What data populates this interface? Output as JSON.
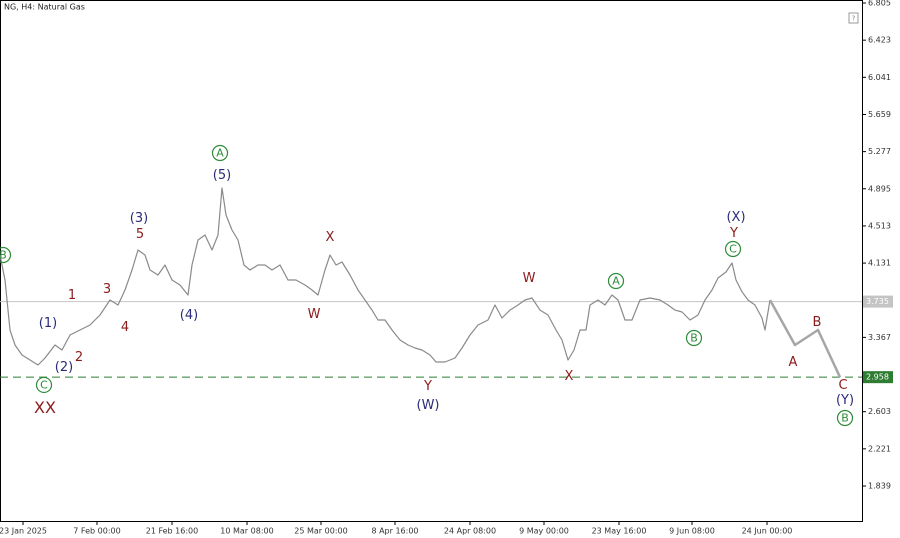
{
  "chart_data": {
    "type": "line",
    "title": "NG, H4: Natural Gas",
    "xlim": [
      0,
      172.4
    ],
    "ylim": [
      1.479,
      6.836
    ],
    "yticks": [
      6.805,
      6.423,
      6.041,
      5.659,
      5.277,
      4.895,
      4.513,
      4.131,
      3.367,
      2.603,
      2.221,
      1.839
    ],
    "xticks": [
      {
        "value": 4.6,
        "label": "23 Jan 2025"
      },
      {
        "value": 19.4,
        "label": "7 Feb 00:00"
      },
      {
        "value": 34.4,
        "label": "21 Feb 16:00"
      },
      {
        "value": 49.4,
        "label": "10 Mar 08:00"
      },
      {
        "value": 64.2,
        "label": "25 Mar 00:00"
      },
      {
        "value": 79,
        "label": "8 Apr 16:00"
      },
      {
        "value": 94,
        "label": "24 Apr 08:00"
      },
      {
        "value": 108.8,
        "label": "9 May 00:00"
      },
      {
        "value": 123.8,
        "label": "23 May 16:00"
      },
      {
        "value": 138.4,
        "label": "9 Jun 08:00"
      },
      {
        "value": 153.4,
        "label": "24 Jun 00:00"
      }
    ],
    "series": [
      {
        "color": "#8a8a8a",
        "x": [
          0,
          1,
          2,
          3,
          4.4,
          6,
          7.6,
          9,
          11,
          12.4,
          14,
          16,
          18,
          20,
          22,
          23.6,
          25,
          26.4,
          27.6,
          29,
          30,
          31.6,
          33,
          34.4,
          36,
          37.6,
          38.4,
          39.6,
          41,
          42.4,
          43.6,
          44.4,
          45.2,
          46.4,
          47.6,
          48.8,
          50,
          51.6,
          53,
          54.4,
          56,
          57.6,
          59.2,
          61,
          62.4,
          63.6,
          65,
          66,
          67.2,
          68.4,
          70,
          71.6,
          73,
          74.4,
          75.6,
          77,
          78.4,
          80,
          81.6,
          83,
          84.4,
          86,
          87.2,
          89,
          91,
          92.4,
          94,
          95.6,
          97.6,
          99,
          100.4,
          102,
          103.6,
          105,
          106.4,
          108,
          109.6,
          111.2,
          112.4,
          113.6,
          114.8,
          116,
          117.2,
          118,
          119.6,
          121,
          122.4,
          123.6,
          125,
          126.4,
          128,
          130,
          132,
          133.6,
          135,
          136.4,
          138,
          139.6,
          141,
          142.4,
          143.6,
          145.2,
          146.4,
          147.2,
          148.4,
          149.6,
          151,
          152.4,
          153,
          154
        ],
        "values": [
          4.214,
          3.957,
          3.443,
          3.289,
          3.186,
          3.134,
          3.083,
          3.155,
          3.289,
          3.237,
          3.391,
          3.443,
          3.494,
          3.597,
          3.751,
          3.7,
          3.854,
          4.06,
          4.265,
          4.214,
          4.06,
          4.008,
          4.111,
          3.957,
          3.906,
          3.803,
          4.111,
          4.368,
          4.42,
          4.265,
          4.42,
          4.903,
          4.625,
          4.471,
          4.368,
          4.111,
          4.06,
          4.111,
          4.111,
          4.06,
          4.111,
          3.957,
          3.957,
          3.906,
          3.854,
          3.803,
          4.06,
          4.214,
          4.111,
          4.142,
          4.008,
          3.854,
          3.751,
          3.648,
          3.546,
          3.546,
          3.443,
          3.34,
          3.289,
          3.258,
          3.237,
          3.186,
          3.114,
          3.114,
          3.155,
          3.258,
          3.391,
          3.494,
          3.546,
          3.7,
          3.566,
          3.648,
          3.7,
          3.751,
          3.772,
          3.648,
          3.597,
          3.443,
          3.34,
          3.134,
          3.237,
          3.443,
          3.443,
          3.7,
          3.751,
          3.7,
          3.803,
          3.751,
          3.546,
          3.546,
          3.751,
          3.772,
          3.751,
          3.7,
          3.648,
          3.628,
          3.546,
          3.597,
          3.751,
          3.854,
          3.978,
          4.039,
          4.132,
          3.957,
          3.836,
          3.751,
          3.7,
          3.566,
          3.443,
          3.751
        ]
      },
      {
        "color": "#a6a6a6",
        "x": [
          154,
          159,
          163.6,
          168
        ],
        "values": [
          3.751,
          3.289,
          3.443,
          2.958
        ]
      }
    ],
    "hlines": [
      {
        "value": 3.735,
        "label": "3.735",
        "color": "#c4c4c4",
        "dashed": false
      },
      {
        "value": 2.958,
        "label": "2.958",
        "color": "#2e7d32",
        "dashed": true
      }
    ],
    "annotations": [
      {
        "text": "B",
        "x": 0.6,
        "y": 4.214,
        "color": "#2e8b3a",
        "circled": true
      },
      {
        "text": "(1)",
        "x": 9.6,
        "y": 3.515,
        "color": "#2b2b7a",
        "circled": false
      },
      {
        "text": "1",
        "x": 14.4,
        "y": 3.803,
        "color": "#8b1a1a",
        "circled": false
      },
      {
        "text": "3",
        "x": 21.4,
        "y": 3.864,
        "color": "#8b1a1a",
        "circled": false
      },
      {
        "text": "(3)",
        "x": 27.8,
        "y": 4.594,
        "color": "#2b2b7a",
        "circled": false
      },
      {
        "text": "5",
        "x": 28,
        "y": 4.43,
        "color": "#8b1a1a",
        "circled": false
      },
      {
        "text": "4",
        "x": 25,
        "y": 3.474,
        "color": "#8b1a1a",
        "circled": false
      },
      {
        "text": "2",
        "x": 15.8,
        "y": 3.165,
        "color": "#8b1a1a",
        "circled": false
      },
      {
        "text": "(2)",
        "x": 12.8,
        "y": 3.063,
        "color": "#2b2b7a",
        "circled": false
      },
      {
        "text": "C",
        "x": 8.8,
        "y": 2.878,
        "color": "#2e8b3a",
        "circled": true
      },
      {
        "text": "XX",
        "x": 9,
        "y": 2.641,
        "color": "#8b1a1a",
        "circled": false
      },
      {
        "text": "(4)",
        "x": 37.8,
        "y": 3.597,
        "color": "#2b2b7a",
        "circled": false
      },
      {
        "text": "A",
        "x": 44,
        "y": 5.263,
        "color": "#2e8b3a",
        "circled": true
      },
      {
        "text": "(5)",
        "x": 44.4,
        "y": 5.037,
        "color": "#2b2b7a",
        "circled": false
      },
      {
        "text": "X",
        "x": 66,
        "y": 4.399,
        "color": "#8b1a1a",
        "circled": false
      },
      {
        "text": "W",
        "x": 62.8,
        "y": 3.607,
        "color": "#8b1a1a",
        "circled": false
      },
      {
        "text": "Y",
        "x": 85.6,
        "y": 2.867,
        "color": "#8b1a1a",
        "circled": false
      },
      {
        "text": "(W)",
        "x": 85.6,
        "y": 2.672,
        "color": "#2b2b7a",
        "circled": false
      },
      {
        "text": "W",
        "x": 105.8,
        "y": 3.978,
        "color": "#8b1a1a",
        "circled": false
      },
      {
        "text": "X",
        "x": 113.8,
        "y": 2.97,
        "color": "#8b1a1a",
        "circled": false
      },
      {
        "text": "A",
        "x": 123.2,
        "y": 3.947,
        "color": "#2e8b3a",
        "circled": true
      },
      {
        "text": "B",
        "x": 138.8,
        "y": 3.361,
        "color": "#2e8b3a",
        "circled": true
      },
      {
        "text": "(X)",
        "x": 147.2,
        "y": 4.605,
        "color": "#2b2b7a",
        "circled": false
      },
      {
        "text": "Y",
        "x": 146.8,
        "y": 4.44,
        "color": "#8b1a1a",
        "circled": false
      },
      {
        "text": "C",
        "x": 146.6,
        "y": 4.276,
        "color": "#2e8b3a",
        "circled": true
      },
      {
        "text": "A",
        "x": 158.6,
        "y": 3.114,
        "color": "#8b1a1a",
        "circled": false
      },
      {
        "text": "B",
        "x": 163.4,
        "y": 3.525,
        "color": "#8b1a1a",
        "circled": false
      },
      {
        "text": "C",
        "x": 168.6,
        "y": 2.878,
        "color": "#8b1a1a",
        "circled": false
      },
      {
        "text": "(Y)",
        "x": 169,
        "y": 2.723,
        "color": "#2b2b7a",
        "circled": false
      },
      {
        "text": "B",
        "x": 169,
        "y": 2.538,
        "color": "#2e8b3a",
        "circled": true
      }
    ]
  }
}
